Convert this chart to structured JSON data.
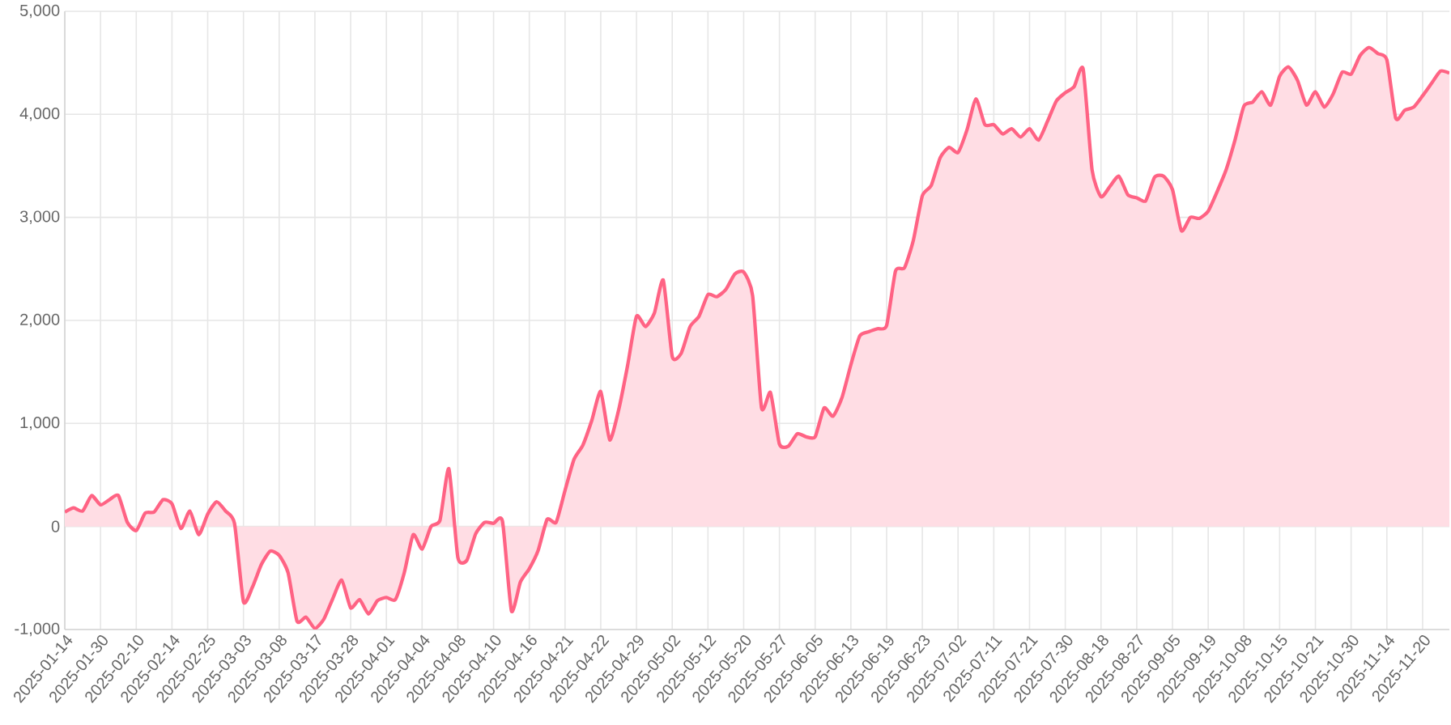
{
  "chart_data": {
    "type": "area",
    "color": "#ff6384",
    "marker": "none",
    "grid": true,
    "categories": [
      "2025-01-14",
      null,
      null,
      null,
      "2025-01-30",
      null,
      null,
      null,
      "2025-02-10",
      null,
      null,
      null,
      "2025-02-14",
      null,
      null,
      null,
      "2025-02-25",
      null,
      null,
      null,
      "2025-03-03",
      null,
      null,
      null,
      "2025-03-08",
      null,
      null,
      null,
      "2025-03-17",
      null,
      null,
      null,
      "2025-03-28",
      null,
      null,
      null,
      "2025-04-01",
      null,
      null,
      null,
      "2025-04-04",
      null,
      null,
      null,
      "2025-04-08",
      null,
      null,
      null,
      "2025-04-10",
      null,
      null,
      null,
      "2025-04-16",
      null,
      null,
      null,
      "2025-04-21",
      null,
      null,
      null,
      "2025-04-22",
      null,
      null,
      null,
      "2025-04-29",
      null,
      null,
      null,
      "2025-05-02",
      null,
      null,
      null,
      "2025-05-12",
      null,
      null,
      null,
      "2025-05-20",
      null,
      null,
      null,
      "2025-05-27",
      null,
      null,
      null,
      "2025-06-05",
      null,
      null,
      null,
      "2025-06-13",
      null,
      null,
      null,
      "2025-06-19",
      null,
      null,
      null,
      "2025-06-23",
      null,
      null,
      null,
      "2025-07-02",
      null,
      null,
      null,
      "2025-07-11",
      null,
      null,
      null,
      "2025-07-21",
      null,
      null,
      null,
      "2025-07-30",
      null,
      null,
      null,
      "2025-08-18",
      null,
      null,
      null,
      "2025-08-27",
      null,
      null,
      null,
      "2025-09-05",
      null,
      null,
      null,
      "2025-09-19",
      null,
      null,
      null,
      "2025-10-08",
      null,
      null,
      null,
      "2025-10-15",
      null,
      null,
      null,
      "2025-10-21",
      null,
      null,
      null,
      "2025-10-30",
      null,
      null,
      null,
      "2025-11-14",
      null,
      null,
      null,
      "2025-11-20",
      null,
      null,
      null
    ],
    "values": [
      140,
      180,
      150,
      300,
      210,
      260,
      300,
      40,
      -40,
      130,
      140,
      260,
      220,
      -20,
      150,
      -80,
      120,
      240,
      150,
      30,
      -730,
      -590,
      -370,
      -240,
      -280,
      -450,
      -920,
      -880,
      -990,
      -900,
      -700,
      -520,
      -790,
      -710,
      -850,
      -720,
      -690,
      -710,
      -450,
      -80,
      -220,
      0,
      60,
      560,
      -300,
      -330,
      -70,
      40,
      30,
      50,
      -820,
      -540,
      -410,
      -230,
      70,
      40,
      350,
      650,
      790,
      1030,
      1310,
      840,
      1130,
      1560,
      2040,
      1940,
      2070,
      2390,
      1650,
      1680,
      1940,
      2040,
      2250,
      2230,
      2300,
      2450,
      2470,
      2240,
      1150,
      1300,
      800,
      780,
      900,
      870,
      870,
      1150,
      1070,
      1250,
      1570,
      1850,
      1890,
      1920,
      1950,
      2480,
      2510,
      2780,
      3210,
      3310,
      3580,
      3680,
      3630,
      3850,
      4150,
      3900,
      3900,
      3810,
      3860,
      3780,
      3860,
      3750,
      3930,
      4130,
      4210,
      4270,
      4440,
      3460,
      3200,
      3300,
      3400,
      3220,
      3190,
      3160,
      3390,
      3400,
      3270,
      2870,
      3000,
      2990,
      3060,
      3250,
      3460,
      3750,
      4080,
      4120,
      4220,
      4090,
      4370,
      4460,
      4330,
      4090,
      4220,
      4070,
      4200,
      4410,
      4390,
      4570,
      4650,
      4590,
      4530,
      3960,
      4040,
      4070,
      4180,
      4300,
      4420,
      4400
    ],
    "ylim": [
      -1000,
      5000
    ],
    "yticks": [
      {
        "value": -1000,
        "label": "-1,000"
      },
      0,
      {
        "value": 1000,
        "label": "1,000"
      },
      {
        "value": 2000,
        "label": "2,000"
      },
      {
        "value": 3000,
        "label": "3,000"
      },
      {
        "value": 4000,
        "label": "4,000"
      },
      {
        "value": 5000,
        "label": "5,000"
      }
    ]
  }
}
